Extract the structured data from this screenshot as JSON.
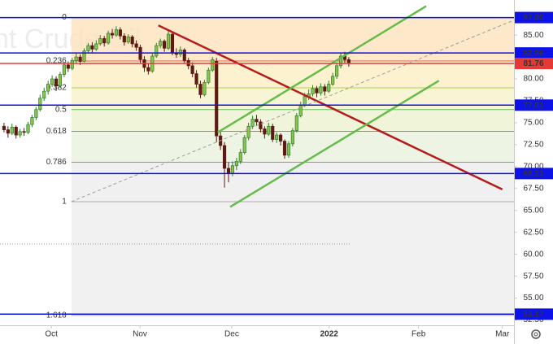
{
  "chart_data": {
    "type": "candlestick",
    "watermark": "nt Crude Oil",
    "xlim": [
      -1,
      127.2
    ],
    "xticks": [
      {
        "value": 11.8,
        "label": "Oct"
      },
      {
        "value": 33.9,
        "label": "Nov"
      },
      {
        "value": 56.8,
        "label": "Dec"
      },
      {
        "value": 81.1,
        "label": "2022",
        "bold": true
      },
      {
        "value": 103.4,
        "label": "Feb"
      },
      {
        "value": 124.3,
        "label": "Mar"
      }
    ],
    "ylim": [
      51.9,
      89
    ],
    "yticks": [
      {
        "value": 52.5,
        "label": "52.50"
      },
      {
        "value": 55,
        "label": "55.00"
      },
      {
        "value": 57.5,
        "label": "57.50"
      },
      {
        "value": 60,
        "label": "60.00"
      },
      {
        "value": 62.5,
        "label": "62.50"
      },
      {
        "value": 65,
        "label": "65.00"
      },
      {
        "value": 67.5,
        "label": "67.50"
      },
      {
        "value": 70,
        "label": "70.00"
      },
      {
        "value": 72.5,
        "label": "72.50"
      },
      {
        "value": 75,
        "label": "75.00"
      },
      {
        "value": 77.5,
        "label": "77.50"
      },
      {
        "value": 80,
        "label": "80.00"
      },
      {
        "value": 82.5,
        "label": "82.50"
      },
      {
        "value": 85,
        "label": "85.00"
      }
    ],
    "up_color": "#2e7d32",
    "down_color": "#5d1a10",
    "candles": [
      [
        74.6,
        75.0,
        73.9,
        74.2
      ],
      [
        74.2,
        74.6,
        73.3,
        73.8
      ],
      [
        73.8,
        74.9,
        73.6,
        74.5
      ],
      [
        74.5,
        74.7,
        73.2,
        73.6
      ],
      [
        73.6,
        74.3,
        73.3,
        74.0
      ],
      [
        74.0,
        74.4,
        73.5,
        73.9
      ],
      [
        73.9,
        75.1,
        73.7,
        74.8
      ],
      [
        74.8,
        75.9,
        74.5,
        75.6
      ],
      [
        75.6,
        76.8,
        75.3,
        76.5
      ],
      [
        76.5,
        78.2,
        76.3,
        77.8
      ],
      [
        77.8,
        79.0,
        77.5,
        78.6
      ],
      [
        78.6,
        79.8,
        78.2,
        79.4
      ],
      [
        79.4,
        80.4,
        79.1,
        80.0
      ],
      [
        80.0,
        80.3,
        78.6,
        79.2
      ],
      [
        79.2,
        80.8,
        79.0,
        80.5
      ],
      [
        80.5,
        81.9,
        80.2,
        81.6
      ],
      [
        81.6,
        82.0,
        80.8,
        81.2
      ],
      [
        81.2,
        82.4,
        81.0,
        82.1
      ],
      [
        82.1,
        82.9,
        81.8,
        82.5
      ],
      [
        82.5,
        82.8,
        81.6,
        82.0
      ],
      [
        82.0,
        83.5,
        81.9,
        83.2
      ],
      [
        83.2,
        84.1,
        82.9,
        83.8
      ],
      [
        83.8,
        84.2,
        83.0,
        83.4
      ],
      [
        83.4,
        84.4,
        83.2,
        84.0
      ],
      [
        84.0,
        85.0,
        83.8,
        84.6
      ],
      [
        84.6,
        84.9,
        83.7,
        84.1
      ],
      [
        84.1,
        85.5,
        83.9,
        85.2
      ],
      [
        85.2,
        85.7,
        84.6,
        85.0
      ],
      [
        85.0,
        86.0,
        84.8,
        85.6
      ],
      [
        85.6,
        85.9,
        84.5,
        84.9
      ],
      [
        84.9,
        85.2,
        83.8,
        84.2
      ],
      [
        84.2,
        85.1,
        84.0,
        84.8
      ],
      [
        84.8,
        85.0,
        83.6,
        84.0
      ],
      [
        84.0,
        84.4,
        83.2,
        83.6
      ],
      [
        83.6,
        83.9,
        81.8,
        82.2
      ],
      [
        82.2,
        82.6,
        80.8,
        81.3
      ],
      [
        81.3,
        81.8,
        80.5,
        80.9
      ],
      [
        80.9,
        82.9,
        80.7,
        82.6
      ],
      [
        82.6,
        84.1,
        82.4,
        83.8
      ],
      [
        83.8,
        84.6,
        83.5,
        84.3
      ],
      [
        84.3,
        84.5,
        83.1,
        83.5
      ],
      [
        83.5,
        85.5,
        83.3,
        85.1
      ],
      [
        85.1,
        85.3,
        82.7,
        83.0
      ],
      [
        83.0,
        83.5,
        82.4,
        82.8
      ],
      [
        82.8,
        83.7,
        82.5,
        83.3
      ],
      [
        83.3,
        83.5,
        81.8,
        82.1
      ],
      [
        82.1,
        82.4,
        81.1,
        81.5
      ],
      [
        81.5,
        81.9,
        80.2,
        80.6
      ],
      [
        80.6,
        81.0,
        79.0,
        79.4
      ],
      [
        79.4,
        79.8,
        77.8,
        78.2
      ],
      [
        78.2,
        79.9,
        78.0,
        79.6
      ],
      [
        79.6,
        81.3,
        79.4,
        81.0
      ],
      [
        81.0,
        82.5,
        80.8,
        82.2
      ],
      [
        82.0,
        82.4,
        72.8,
        73.5
      ],
      [
        73.5,
        74.2,
        71.9,
        72.4
      ],
      [
        72.4,
        72.8,
        67.6,
        69.8
      ],
      [
        69.8,
        70.5,
        68.2,
        69.2
      ],
      [
        69.2,
        70.6,
        68.9,
        70.1
      ],
      [
        70.1,
        71.0,
        69.6,
        70.6
      ],
      [
        70.6,
        72.0,
        70.3,
        71.6
      ],
      [
        71.6,
        73.6,
        71.4,
        73.3
      ],
      [
        73.3,
        75.0,
        73.0,
        74.6
      ],
      [
        74.6,
        75.8,
        74.3,
        75.4
      ],
      [
        75.4,
        75.9,
        74.7,
        75.1
      ],
      [
        75.1,
        75.4,
        73.9,
        74.3
      ],
      [
        74.3,
        74.6,
        73.2,
        73.7
      ],
      [
        73.7,
        75.0,
        73.5,
        74.6
      ],
      [
        74.6,
        74.9,
        72.8,
        73.1
      ],
      [
        73.1,
        73.9,
        72.7,
        73.6
      ],
      [
        73.6,
        73.8,
        72.4,
        72.9
      ],
      [
        72.9,
        73.1,
        70.9,
        71.3
      ],
      [
        71.3,
        72.9,
        71.0,
        72.6
      ],
      [
        72.6,
        74.4,
        72.3,
        74.1
      ],
      [
        74.1,
        76.1,
        73.9,
        75.8
      ],
      [
        75.8,
        77.4,
        75.6,
        77.0
      ],
      [
        77.0,
        78.4,
        76.8,
        78.0
      ],
      [
        78.0,
        78.8,
        77.6,
        78.3
      ],
      [
        78.3,
        79.3,
        78.0,
        78.9
      ],
      [
        78.9,
        79.2,
        77.9,
        78.4
      ],
      [
        78.4,
        79.5,
        78.1,
        79.1
      ],
      [
        79.1,
        79.4,
        78.1,
        78.6
      ],
      [
        78.6,
        79.8,
        78.4,
        79.4
      ],
      [
        79.4,
        80.7,
        79.2,
        80.3
      ],
      [
        80.3,
        81.9,
        80.0,
        81.5
      ],
      [
        81.5,
        83.0,
        81.2,
        82.6
      ],
      [
        82.6,
        83.1,
        81.8,
        82.2
      ],
      [
        82.2,
        82.5,
        81.4,
        81.76
      ]
    ],
    "fib": {
      "start": 87,
      "end": 66,
      "from_x": 16.8,
      "levels": [
        0,
        0.236,
        0.382,
        0.5,
        0.618,
        0.786,
        1,
        1.618
      ],
      "colors": [
        "#9e9e9e",
        "#e53935",
        "#9ccc2b",
        "#4caf50",
        "#26a65b",
        "#26a0b0",
        "#9e9e9e",
        "#9e9e9e"
      ],
      "fills": [
        "#fde2bd",
        "#fcefc4",
        "#f5f3c8",
        "#ecf3cf",
        "#e8f1dd",
        "#ececec",
        "#ededed"
      ]
    },
    "price_lines": [
      {
        "value": 87,
        "label": "87.00",
        "color": "#0d12e8"
      },
      {
        "value": 82.96,
        "label": "82.96",
        "color": "#0d12e8"
      },
      {
        "value": 81.76,
        "label": "81.76",
        "color": "#e53935"
      },
      {
        "value": 77.01,
        "label": "77.01",
        "color": "#0d12e8"
      },
      {
        "value": 69.21,
        "label": "69.21",
        "color": "#0d12e8"
      },
      {
        "value": 53.17,
        "label": "53.17",
        "color": "#0d12e8"
      }
    ],
    "trend_lines": [
      {
        "x": [
          38.5,
          124.3
        ],
        "y": [
          86.1,
          67.4
        ],
        "color": "#b71c1c",
        "width": 2.5
      },
      {
        "x": [
          53.3,
          105.3
        ],
        "y": [
          73.9,
          88.3
        ],
        "color": "#66bb4a",
        "width": 2.5
      },
      {
        "x": [
          56.4,
          108.5
        ],
        "y": [
          65.4,
          79.8
        ],
        "color": "#66bb4a",
        "width": 2.5
      },
      {
        "x": [
          16.8,
          127.2
        ],
        "y": [
          66.0,
          86.7
        ],
        "color": "#9e9e9e",
        "width": 1,
        "dashed": true
      }
    ]
  }
}
